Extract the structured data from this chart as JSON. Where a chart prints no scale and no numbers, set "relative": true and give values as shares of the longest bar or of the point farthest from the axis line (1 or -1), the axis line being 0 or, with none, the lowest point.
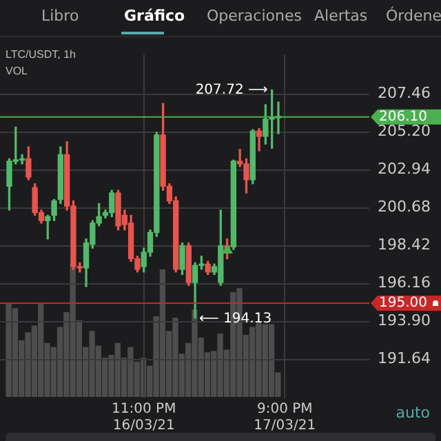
{
  "chart_data": [
    {
      "type": "candlestick",
      "title": "LTC/USDT, 1h",
      "x": [
        "--03-16T02:00",
        "--03-16T03:00",
        "--03-16T04:00",
        "--03-16T05:00",
        "--03-16T06:00",
        "--03-16T07:00",
        "--03-16T08:00",
        "--03-16T09:00",
        "--03-16T10:00",
        "--03-16T11:00",
        "--03-16T12:00",
        "--03-16T13:00",
        "--03-16T14:00",
        "--03-16T15:00",
        "--03-16T16:00",
        "--03-16T17:00",
        "--03-16T18:00",
        "--03-16T19:00",
        "--03-16T20:00",
        "--03-16T21:00",
        "--03-16T22:00",
        "--03-16T23:00",
        "--03-17T00:00",
        "--03-17T01:00",
        "--03-17T02:00",
        "--03-17T03:00",
        "--03-17T04:00",
        "--03-17T05:00",
        "--03-17T06:00",
        "--03-17T07:00",
        "--03-17T08:00",
        "--03-17T09:00",
        "--03-17T10:00",
        "--03-17T11:00",
        "--03-17T12:00",
        "--03-17T13:00",
        "--03-17T14:00",
        "--03-17T15:00",
        "--03-17T16:00",
        "--03-17T17:00",
        "--03-17T18:00",
        "--03-17T19:00",
        "--03-17T20:00"
      ],
      "ohlc": [
        [
          201.97,
          203.61,
          200.55,
          203.46
        ],
        [
          203.46,
          205.5,
          203.3,
          203.53
        ],
        [
          203.53,
          203.85,
          203.3,
          203.61
        ],
        [
          203.61,
          204.32,
          202.36,
          202.51
        ],
        [
          201.89,
          202.12,
          200.24,
          200.4
        ],
        [
          200.4,
          200.55,
          199.77,
          199.92
        ],
        [
          199.92,
          200.24,
          198.83,
          200.16
        ],
        [
          200.24,
          201.18,
          199.92,
          201.1
        ],
        [
          201.18,
          204.32,
          200.94,
          203.85
        ],
        [
          203.85,
          204.63,
          200.55,
          200.79
        ],
        [
          200.79,
          201.1,
          197.02,
          197.18
        ],
        [
          197.18,
          197.41,
          196.86,
          197.1
        ],
        [
          197.1,
          198.83,
          195.99,
          198.59
        ],
        [
          198.51,
          199.92,
          198.28,
          199.77
        ],
        [
          199.77,
          200.94,
          199.61,
          200.16
        ],
        [
          200.24,
          200.55,
          200.08,
          200.4
        ],
        [
          200.4,
          201.73,
          200.16,
          201.57
        ],
        [
          201.57,
          201.73,
          199.37,
          199.61
        ],
        [
          200.24,
          200.55,
          199.37,
          199.69
        ],
        [
          199.77,
          200.24,
          197.49,
          197.65
        ],
        [
          197.65,
          197.8,
          196.86,
          197.02
        ],
        [
          197.18,
          198.28,
          196.86,
          198.04
        ],
        [
          198.04,
          199.37,
          197.8,
          199.22
        ],
        [
          199.22,
          205.18,
          198.98,
          205.03
        ],
        [
          205.03,
          206.91,
          201.73,
          201.97
        ],
        [
          201.97,
          202.12,
          200.94,
          201.1
        ],
        [
          201.1,
          201.34,
          196.86,
          197.02
        ],
        [
          197.02,
          198.59,
          196.71,
          198.43
        ],
        [
          198.43,
          198.59,
          196.06,
          196.23
        ],
        [
          196.23,
          197.41,
          194.13,
          197.25
        ],
        [
          197.25,
          197.8,
          197.02,
          197.33
        ],
        [
          197.33,
          197.49,
          196.71,
          196.86
        ],
        [
          196.86,
          197.33,
          196.71,
          197.18
        ],
        [
          196.23,
          200.55,
          196.06,
          198.43
        ],
        [
          198.43,
          198.83,
          197.65,
          198.28
        ],
        [
          198.35,
          203.53,
          198.2,
          203.46
        ],
        [
          203.46,
          204.16,
          203.14,
          203.3
        ],
        [
          203.3,
          203.61,
          201.57,
          202.36
        ],
        [
          202.36,
          205.34,
          202.12,
          205.26
        ],
        [
          205.26,
          205.42,
          204.08,
          204.95
        ],
        [
          204.95,
          206.83,
          204.48,
          205.97
        ],
        [
          205.97,
          207.72,
          204.24,
          206.05
        ],
        [
          206.05,
          206.99,
          205.1,
          206.1
        ]
      ],
      "colors": [
        "#53b96a",
        "#53b96a",
        "#53b96a",
        "#e8554e",
        "#e8554e",
        "#e8554e",
        "#53b96a",
        "#53b96a",
        "#53b96a",
        "#e8554e",
        "#e8554e",
        "#e8554e",
        "#53b96a",
        "#53b96a",
        "#53b96a",
        "#53b96a",
        "#53b96a",
        "#e8554e",
        "#e8554e",
        "#e8554e",
        "#e8554e",
        "#53b96a",
        "#53b96a",
        "#53b96a",
        "#e8554e",
        "#e8554e",
        "#e8554e",
        "#53b96a",
        "#e8554e",
        "#53b96a",
        "#53b96a",
        "#e8554e",
        "#53b96a",
        "#53b96a",
        "#e8554e",
        "#53b96a",
        "#e8554e",
        "#e8554e",
        "#53b96a",
        "#e8554e",
        "#53b96a",
        "#53b96a",
        "#53b96a"
      ],
      "xlim": [
        "--03-16T00:33",
        "--03-18T10:12"
      ],
      "xticks": [
        {
          "value": "--03-16T23:00",
          "label": "11:00 PM\n16/03/21"
        },
        {
          "value": "--03-17T21:00",
          "label": "9:00 PM\n17/03/21"
        }
      ],
      "ylim": [
        189.33,
        209.82
      ],
      "yticks": [
        191.64,
        {
          "value": 193.9,
          "label": "193.90"
        },
        196.16,
        198.42,
        200.68,
        202.94,
        {
          "value": 205.2,
          "label": "205.20"
        },
        207.46
      ],
      "grid": true,
      "legend": false,
      "ref_lines": [
        {
          "axis": "y",
          "value": 206.1,
          "label": "206.10",
          "color": "#4caf50"
        },
        {
          "axis": "y",
          "value": 195,
          "label": "195.00",
          "color": "#c62828"
        }
      ],
      "annotations": [
        "Libro",
        "Gráfico",
        "Operaciones",
        "Alertas",
        "Órdene",
        "auto",
        {
          "text": "207.72 ⟶",
          "x": "--03-17T19:00",
          "y": 207.72
        },
        {
          "text": "⟵ 194.13",
          "x": "--03-17T07:00",
          "y": 194.13
        }
      ]
    },
    {
      "type": "bar",
      "title": "VOL",
      "relative": true,
      "tick_labels": false,
      "color": "#4d4d4d",
      "categories": [
        null,
        null,
        null,
        null,
        null,
        null,
        null,
        null,
        null,
        null,
        null,
        null,
        null,
        null,
        null,
        null,
        null,
        null,
        null,
        null,
        null,
        null,
        null,
        null,
        null,
        null,
        null,
        null,
        null,
        null,
        null,
        null,
        null,
        null,
        null,
        null,
        null,
        null,
        null,
        null,
        null,
        null,
        null
      ],
      "values": [
        0.7,
        0.66,
        0.42,
        0.48,
        0.53,
        0.7,
        0.4,
        0.37,
        0.52,
        0.63,
        1,
        0.57,
        0.37,
        0.49,
        0.38,
        0.29,
        0.31,
        0.4,
        0.29,
        0.37,
        0.26,
        0.29,
        0.23,
        0.6,
        0.95,
        0.49,
        0.59,
        0.32,
        0.4,
        0.65,
        0.44,
        0.33,
        0.34,
        0.47,
        0.35,
        0.78,
        0.81,
        0.46,
        0.52,
        0.55,
        0.54,
        0.54,
        0.18
      ]
    }
  ]
}
